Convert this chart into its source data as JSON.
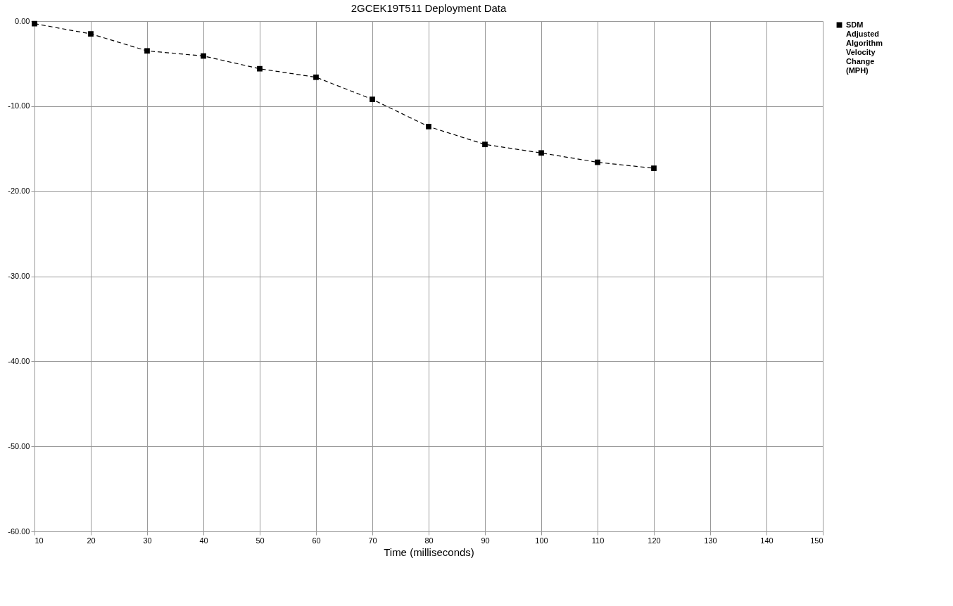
{
  "chart_data": {
    "type": "line",
    "title": "2GCEK19T511 Deployment Data",
    "xlabel": "Time (milliseconds)",
    "x": [
      10,
      20,
      30,
      40,
      50,
      60,
      70,
      80,
      90,
      100,
      110,
      120
    ],
    "series": [
      {
        "name": "SDM Adjusted Algorithm Velocity Change (MPH)",
        "color": "#000000",
        "values": [
          -0.3,
          -1.5,
          -3.5,
          -4.1,
          -5.6,
          -6.6,
          -9.2,
          -12.4,
          -14.5,
          -15.5,
          -16.6,
          -17.3
        ]
      }
    ],
    "xlim": [
      10,
      150
    ],
    "xticks": [
      10,
      20,
      30,
      40,
      50,
      60,
      70,
      80,
      90,
      100,
      110,
      120,
      130,
      140,
      150
    ],
    "ylim": [
      -60,
      0
    ],
    "yticks": [
      {
        "value": 0,
        "label": "0.00"
      },
      {
        "value": -10,
        "label": "-10.00"
      },
      {
        "value": -20,
        "label": "-20.00"
      },
      {
        "value": -30,
        "label": "-30.00"
      },
      {
        "value": -40,
        "label": "-40.00"
      },
      {
        "value": -50,
        "label": "-50.00"
      },
      {
        "value": -60,
        "label": "-60.00"
      }
    ],
    "grid": true,
    "legend": "right",
    "marker": "square",
    "line_style": "dashed"
  }
}
